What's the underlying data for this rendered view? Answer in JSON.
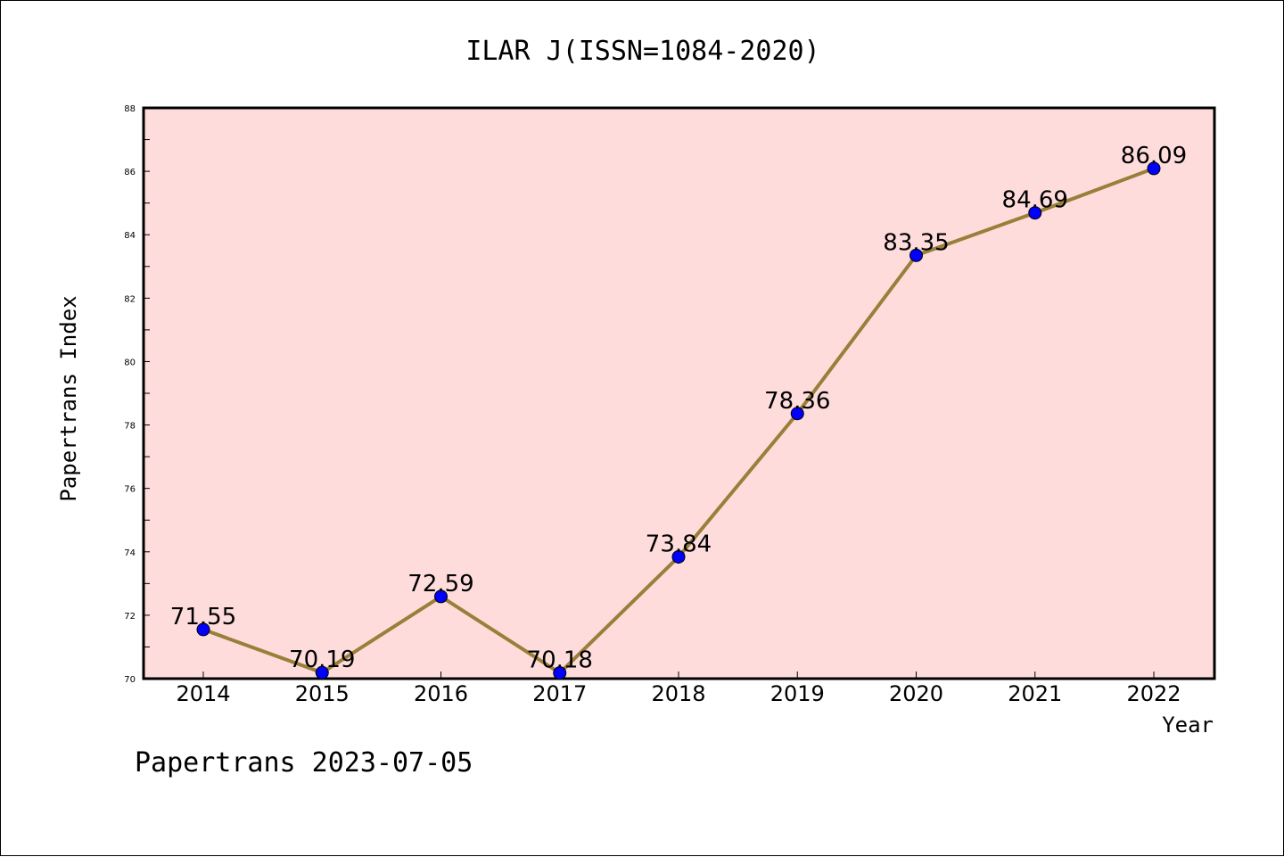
{
  "chart_data": {
    "type": "line",
    "title": "ILAR J(ISSN=1084-2020)",
    "xlabel": "Year",
    "ylabel": "Papertrans Index",
    "categories": [
      "2014",
      "2015",
      "2016",
      "2017",
      "2018",
      "2019",
      "2020",
      "2021",
      "2022"
    ],
    "values": [
      71.55,
      70.19,
      72.59,
      70.18,
      73.84,
      78.36,
      83.35,
      84.69,
      86.09
    ],
    "data_labels": [
      "71.55",
      "70.19",
      "72.59",
      "70.18",
      "73.84",
      "78.36",
      "83.35",
      "84.69",
      "86.09"
    ],
    "ylim": [
      70,
      88
    ],
    "yticks": [
      "70",
      "72",
      "74",
      "76",
      "78",
      "80",
      "82",
      "84",
      "86",
      "88"
    ],
    "grid": false,
    "colors": {
      "plot_background": "#FFDCDC",
      "line": "#9A7F3A",
      "marker": "#0000FF"
    }
  },
  "footer": "Papertrans 2023-07-05"
}
